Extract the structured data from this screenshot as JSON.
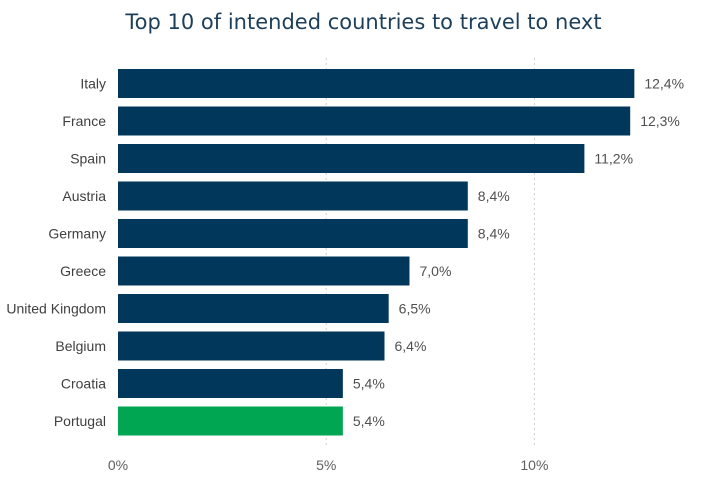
{
  "chart_data": {
    "type": "bar",
    "orientation": "horizontal",
    "title": "Top 10 of intended countries to travel to next",
    "categories": [
      "Italy",
      "France",
      "Spain",
      "Austria",
      "Germany",
      "Greece",
      "United Kingdom",
      "Belgium",
      "Croatia",
      "Portugal"
    ],
    "values": [
      12.4,
      12.3,
      11.2,
      8.4,
      8.4,
      7.0,
      6.5,
      6.4,
      5.4,
      5.4
    ],
    "value_labels": [
      "12,4%",
      "12,3%",
      "11,2%",
      "8,4%",
      "8,4%",
      "7,0%",
      "6,5%",
      "6,4%",
      "5,4%",
      "5,4%"
    ],
    "xlim": [
      0,
      13.4
    ],
    "xticks": [
      0,
      5,
      10
    ],
    "xtick_labels": [
      "0%",
      "5%",
      "10%"
    ],
    "grid": true,
    "colors": {
      "default": "#00375b",
      "highlight": "#00a651"
    },
    "highlight_category": "Portugal"
  }
}
